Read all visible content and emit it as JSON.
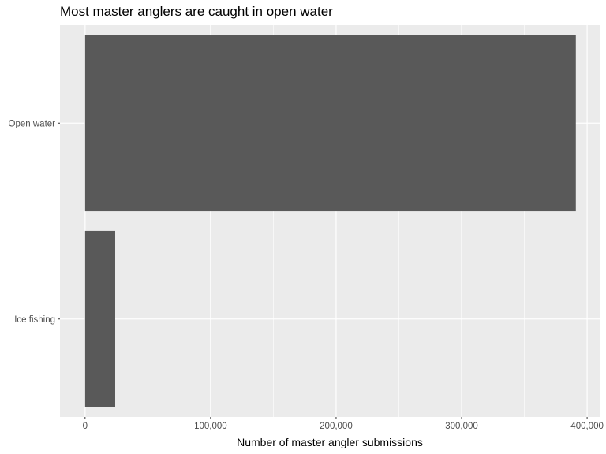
{
  "chart_data": {
    "type": "bar",
    "orientation": "horizontal",
    "title": "Most master anglers are caught in open water",
    "xlabel": "Number of master angler submissions",
    "ylabel": "",
    "categories": [
      "Open water",
      "Ice fishing"
    ],
    "values": [
      391000,
      24000
    ],
    "xlim": [
      -20000,
      410000
    ],
    "xticks": [
      0,
      100000,
      200000,
      300000,
      400000
    ],
    "xtick_labels": [
      "0",
      "100,000",
      "200,000",
      "300,000",
      "400,000"
    ],
    "grid": true,
    "legend": "none",
    "colors": {
      "panel_background": "#ebebeb",
      "grid_major": "#ffffff",
      "bar_fill": "#595959",
      "tick_text": "#4d4d4d"
    }
  }
}
